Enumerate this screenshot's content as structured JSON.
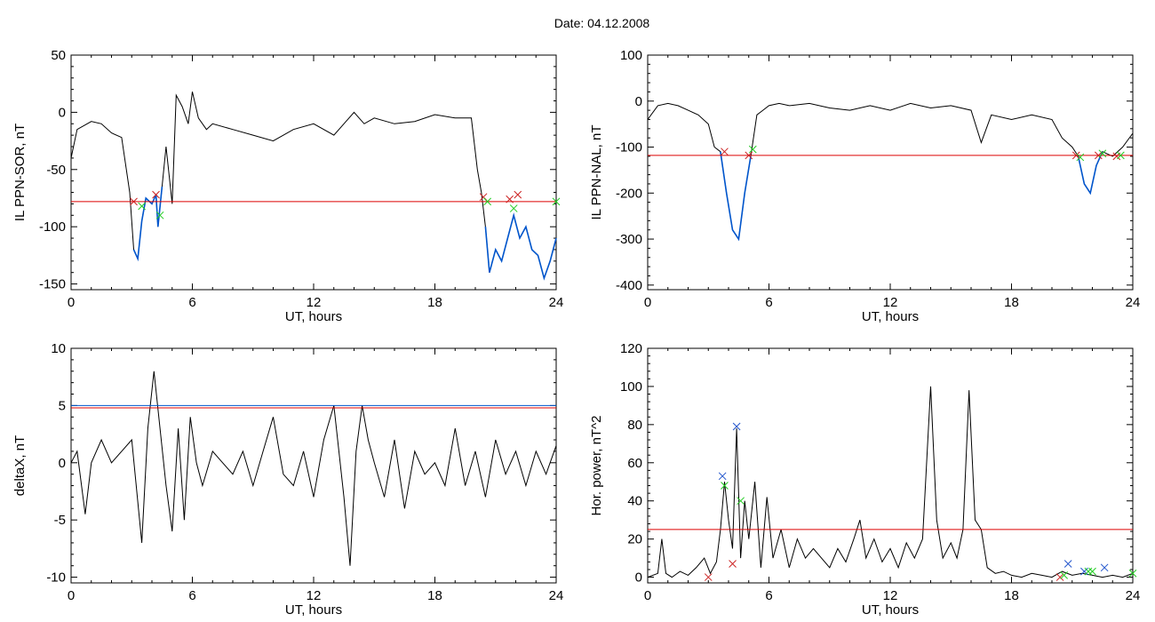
{
  "figure": {
    "title": "Date:  04.12.2008"
  },
  "colors": {
    "trace": "#000000",
    "threshold": "#dd0000",
    "highlight": "#0055cc",
    "marker_green": "#22cc22",
    "marker_red": "#cc2222",
    "marker_blue": "#2255cc"
  },
  "chart_data": [
    {
      "type": "line",
      "xlabel": "UT, hours",
      "ylabel": "IL PPN-SOR, nT",
      "xlim": [
        0,
        24
      ],
      "ylim": [
        -155,
        50
      ],
      "xticks": [
        "0",
        "6",
        "12",
        "18",
        "24"
      ],
      "yticks": [
        {
          "v": -150,
          "t": "-150"
        },
        {
          "v": -100,
          "t": "-100"
        },
        {
          "v": -50,
          "t": "-50"
        },
        {
          "v": 0,
          "t": "0"
        },
        {
          "v": 50,
          "t": "50"
        }
      ],
      "thresholds": [
        {
          "y": -78,
          "color": "red"
        }
      ],
      "series": [
        {
          "x": [
            0,
            0.3,
            0.6,
            1,
            1.5,
            2,
            2.5,
            2.9,
            3.1,
            3.3,
            3.5,
            3.7,
            4,
            4.2,
            4.3,
            4.5,
            4.7,
            5,
            5.2,
            5.5,
            5.8,
            6,
            6.3,
            6.7,
            7,
            8,
            9,
            10,
            11,
            12,
            13,
            13.5,
            14,
            14.5,
            15,
            16,
            17,
            18,
            19,
            19.8,
            20.1,
            20.3,
            20.5,
            20.7,
            21,
            21.3,
            21.6,
            21.9,
            22.2,
            22.5,
            22.8,
            23.1,
            23.4,
            23.7,
            24
          ],
          "y": [
            -40,
            -15,
            -12,
            -8,
            -10,
            -18,
            -22,
            -70,
            -120,
            -128,
            -95,
            -75,
            -80,
            -72,
            -100,
            -65,
            -30,
            -80,
            15,
            5,
            -10,
            18,
            -5,
            -15,
            -10,
            -15,
            -20,
            -25,
            -15,
            -10,
            -20,
            -10,
            0,
            -10,
            -5,
            -10,
            -8,
            -2,
            -5,
            -5,
            -50,
            -70,
            -100,
            -140,
            -120,
            -130,
            -110,
            -90,
            -110,
            -100,
            -120,
            -125,
            -145,
            -130,
            -110
          ],
          "highlight_from": 3.1,
          "highlight_to": 4.6,
          "highlight_from2": 20.4,
          "highlight_to2": 24
        }
      ],
      "markers": [
        {
          "x": 3.1,
          "y": -78,
          "c": "red"
        },
        {
          "x": 3.5,
          "y": -82,
          "c": "green"
        },
        {
          "x": 4.2,
          "y": -72,
          "c": "red"
        },
        {
          "x": 4.4,
          "y": -90,
          "c": "green"
        },
        {
          "x": 20.4,
          "y": -74,
          "c": "red"
        },
        {
          "x": 20.6,
          "y": -78,
          "c": "green"
        },
        {
          "x": 21.7,
          "y": -76,
          "c": "red"
        },
        {
          "x": 21.9,
          "y": -84,
          "c": "green"
        },
        {
          "x": 22.1,
          "y": -72,
          "c": "red"
        },
        {
          "x": 24,
          "y": -78,
          "c": "green"
        }
      ]
    },
    {
      "type": "line",
      "xlabel": "UT, hours",
      "ylabel": "IL PPN-NAL, nT",
      "xlim": [
        0,
        24
      ],
      "ylim": [
        -410,
        100
      ],
      "xticks": [
        "0",
        "6",
        "12",
        "18",
        "24"
      ],
      "yticks": [
        {
          "v": -400,
          "t": "-400"
        },
        {
          "v": -300,
          "t": "-300"
        },
        {
          "v": -200,
          "t": "-200"
        },
        {
          "v": -100,
          "t": "-100"
        },
        {
          "v": 0,
          "t": "0"
        },
        {
          "v": 100,
          "t": "100"
        }
      ],
      "thresholds": [
        {
          "y": -118,
          "color": "red"
        }
      ],
      "series": [
        {
          "x": [
            0,
            0.5,
            1,
            1.5,
            2,
            2.5,
            3,
            3.3,
            3.6,
            3.9,
            4.2,
            4.5,
            4.8,
            5.1,
            5.4,
            5.7,
            6,
            6.5,
            7,
            8,
            9,
            10,
            11,
            12,
            13,
            14,
            15,
            16,
            16.5,
            17,
            18,
            19,
            20,
            20.5,
            21,
            21.3,
            21.6,
            21.9,
            22.2,
            22.5,
            23,
            23.5,
            24
          ],
          "y": [
            -40,
            -10,
            -5,
            -10,
            -20,
            -30,
            -50,
            -100,
            -110,
            -200,
            -280,
            -300,
            -200,
            -120,
            -30,
            -20,
            -10,
            -5,
            -10,
            -5,
            -15,
            -20,
            -10,
            -20,
            -5,
            -15,
            -10,
            -20,
            -90,
            -30,
            -40,
            -30,
            -40,
            -80,
            -100,
            -120,
            -180,
            -200,
            -140,
            -110,
            -120,
            -100,
            -70
          ],
          "highlight_from": 3.6,
          "highlight_to": 5.3,
          "highlight_from2": 21.1,
          "highlight_to2": 22.5
        }
      ],
      "markers": [
        {
          "x": 3.8,
          "y": -110,
          "c": "red"
        },
        {
          "x": 5.0,
          "y": -118,
          "c": "red"
        },
        {
          "x": 5.2,
          "y": -105,
          "c": "green"
        },
        {
          "x": 21.2,
          "y": -118,
          "c": "red"
        },
        {
          "x": 21.4,
          "y": -122,
          "c": "green"
        },
        {
          "x": 22.3,
          "y": -118,
          "c": "red"
        },
        {
          "x": 22.5,
          "y": -114,
          "c": "green"
        },
        {
          "x": 23.2,
          "y": -120,
          "c": "red"
        },
        {
          "x": 23.4,
          "y": -118,
          "c": "green"
        }
      ]
    },
    {
      "type": "line",
      "xlabel": "UT, hours",
      "ylabel": "deltaX, nT",
      "xlim": [
        0,
        24
      ],
      "ylim": [
        -10.5,
        10
      ],
      "xticks": [
        "0",
        "6",
        "12",
        "18",
        "24"
      ],
      "yticks": [
        {
          "v": -10,
          "t": "-10"
        },
        {
          "v": -5,
          "t": "-5"
        },
        {
          "v": 0,
          "t": "0"
        },
        {
          "v": 5,
          "t": "5"
        },
        {
          "v": 10,
          "t": "10"
        }
      ],
      "thresholds": [
        {
          "y": 5.0,
          "color": "blue"
        },
        {
          "y": 4.8,
          "color": "red"
        }
      ],
      "series": [
        {
          "x": [
            0,
            0.3,
            0.7,
            1,
            1.5,
            2,
            2.5,
            3,
            3.5,
            3.8,
            4.1,
            4.4,
            4.7,
            5,
            5.3,
            5.6,
            5.9,
            6.2,
            6.5,
            7,
            7.5,
            8,
            8.5,
            9,
            9.5,
            10,
            10.5,
            11,
            11.5,
            12,
            12.5,
            13,
            13.5,
            13.8,
            14.1,
            14.4,
            14.7,
            15,
            15.5,
            16,
            16.5,
            17,
            17.5,
            18,
            18.5,
            19,
            19.5,
            20,
            20.5,
            21,
            21.5,
            22,
            22.5,
            23,
            23.5,
            24
          ],
          "y": [
            0,
            1,
            -4.5,
            0,
            2,
            0,
            1,
            2,
            -7,
            3,
            8,
            3,
            -2,
            -6,
            3,
            -5,
            4,
            0,
            -2,
            1,
            0,
            -1,
            1,
            -2,
            1,
            4,
            -1,
            -2,
            1,
            -3,
            2,
            5,
            -3,
            -9,
            1,
            5,
            2,
            0,
            -3,
            2,
            -4,
            1,
            -1,
            0,
            -2,
            3,
            -2,
            1,
            -3,
            2,
            -1,
            1,
            -2,
            1,
            -1,
            1.5
          ]
        }
      ],
      "markers": []
    },
    {
      "type": "line",
      "xlabel": "UT, hours",
      "ylabel": "Hor. power, nT^2",
      "xlim": [
        0,
        24
      ],
      "ylim": [
        -3,
        120
      ],
      "xticks": [
        "0",
        "6",
        "12",
        "18",
        "24"
      ],
      "yticks": [
        {
          "v": 0,
          "t": "0"
        },
        {
          "v": 20,
          "t": "20"
        },
        {
          "v": 40,
          "t": "40"
        },
        {
          "v": 60,
          "t": "60"
        },
        {
          "v": 80,
          "t": "80"
        },
        {
          "v": 100,
          "t": "100"
        },
        {
          "v": 120,
          "t": "120"
        }
      ],
      "thresholds": [
        {
          "y": 25,
          "color": "red"
        }
      ],
      "series": [
        {
          "x": [
            0,
            0.5,
            0.7,
            0.9,
            1.2,
            1.6,
            2,
            2.4,
            2.8,
            3.1,
            3.4,
            3.6,
            3.8,
            4.0,
            4.2,
            4.4,
            4.6,
            4.8,
            5.0,
            5.3,
            5.6,
            5.9,
            6.2,
            6.6,
            7,
            7.4,
            7.8,
            8.2,
            8.6,
            9,
            9.4,
            9.8,
            10.2,
            10.5,
            10.8,
            11.2,
            11.6,
            12,
            12.4,
            12.8,
            13.2,
            13.6,
            14.0,
            14.3,
            14.6,
            15,
            15.3,
            15.6,
            15.9,
            16.2,
            16.5,
            16.8,
            17.2,
            17.6,
            18,
            18.5,
            19,
            19.5,
            20,
            20.5,
            21,
            21.5,
            22,
            22.5,
            23,
            23.5,
            24
          ],
          "y": [
            0,
            2,
            20,
            2,
            0,
            3,
            1,
            5,
            10,
            2,
            8,
            25,
            50,
            30,
            15,
            78,
            10,
            40,
            20,
            50,
            5,
            42,
            10,
            25,
            5,
            20,
            10,
            15,
            10,
            5,
            15,
            8,
            20,
            30,
            10,
            20,
            8,
            15,
            5,
            18,
            10,
            20,
            100,
            30,
            10,
            18,
            10,
            25,
            98,
            30,
            25,
            5,
            2,
            3,
            1,
            0,
            2,
            1,
            0,
            3,
            1,
            2,
            1,
            0,
            1,
            0,
            2
          ]
        }
      ],
      "markers": [
        {
          "x": 3.0,
          "y": 0,
          "c": "red"
        },
        {
          "x": 3.7,
          "y": 53,
          "c": "blue"
        },
        {
          "x": 3.8,
          "y": 48,
          "c": "green"
        },
        {
          "x": 4.2,
          "y": 7,
          "c": "red"
        },
        {
          "x": 4.4,
          "y": 79,
          "c": "blue"
        },
        {
          "x": 4.6,
          "y": 40,
          "c": "green"
        },
        {
          "x": 20.4,
          "y": 0,
          "c": "red"
        },
        {
          "x": 20.6,
          "y": 1,
          "c": "green"
        },
        {
          "x": 20.8,
          "y": 7,
          "c": "blue"
        },
        {
          "x": 21.6,
          "y": 3,
          "c": "blue"
        },
        {
          "x": 21.8,
          "y": 3,
          "c": "green"
        },
        {
          "x": 22.0,
          "y": 3,
          "c": "green"
        },
        {
          "x": 22.6,
          "y": 5,
          "c": "blue"
        },
        {
          "x": 24,
          "y": 2,
          "c": "green"
        }
      ]
    }
  ]
}
